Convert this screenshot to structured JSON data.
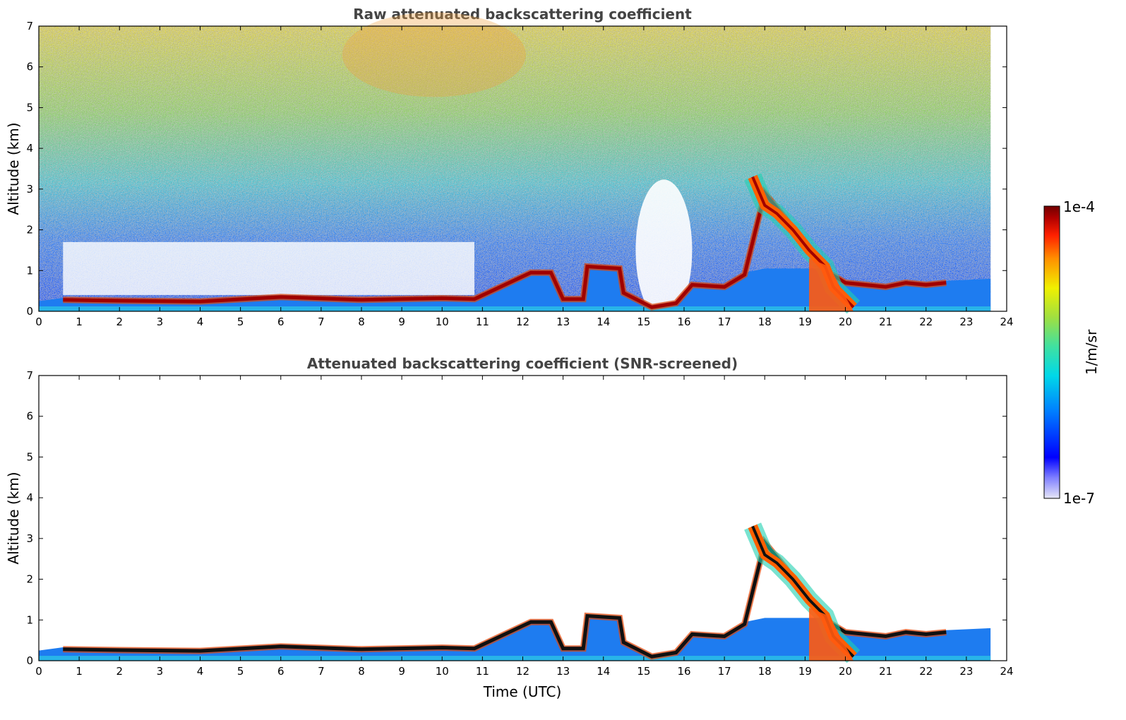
{
  "chart_data": [
    {
      "type": "heatmap",
      "title": "Raw attenuated backscattering coefficient",
      "xlabel": "",
      "ylabel": "Altitude (km)",
      "xlim": [
        0,
        24
      ],
      "ylim": [
        0,
        7
      ],
      "xticks": [
        "0",
        "1",
        "2",
        "3",
        "4",
        "5",
        "6",
        "7",
        "8",
        "9",
        "10",
        "11",
        "12",
        "13",
        "14",
        "15",
        "16",
        "17",
        "18",
        "19",
        "20",
        "21",
        "22",
        "23",
        "24"
      ],
      "yticks": [
        "0",
        "1",
        "2",
        "3",
        "4",
        "5",
        "6",
        "7"
      ],
      "data_end_hour": 23.6,
      "features": {
        "boundary_layer_top_km": [
          [
            0.6,
            0.28
          ],
          [
            2,
            0.26
          ],
          [
            4,
            0.24
          ],
          [
            6,
            0.35
          ],
          [
            8,
            0.28
          ],
          [
            10,
            0.32
          ],
          [
            10.8,
            0.3
          ],
          [
            12.2,
            0.95
          ],
          [
            12.7,
            0.95
          ],
          [
            13,
            0.3
          ],
          [
            13.5,
            0.3
          ],
          [
            13.6,
            1.1
          ],
          [
            14.4,
            1.05
          ],
          [
            14.5,
            0.45
          ],
          [
            15.2,
            0.1
          ],
          [
            15.8,
            0.2
          ],
          [
            16.2,
            0.65
          ],
          [
            17,
            0.6
          ],
          [
            17.5,
            0.9
          ],
          [
            18,
            2.9
          ],
          [
            18.5,
            2.3
          ],
          [
            19,
            1.6
          ],
          [
            19.5,
            1.0
          ],
          [
            20,
            0.7
          ],
          [
            20.5,
            0.65
          ],
          [
            21,
            0.6
          ],
          [
            21.5,
            0.7
          ],
          [
            22,
            0.65
          ],
          [
            22.5,
            0.7
          ]
        ],
        "plume": [
          [
            17.7,
            3.3
          ],
          [
            18,
            2.6
          ],
          [
            18.3,
            2.4
          ],
          [
            18.7,
            2.0
          ],
          [
            19.1,
            1.5
          ],
          [
            19.5,
            1.1
          ],
          [
            19.7,
            0.6
          ],
          [
            20.2,
            0.1
          ]
        ]
      }
    },
    {
      "type": "heatmap",
      "title": "Attenuated backscattering coefficient (SNR-screened)",
      "xlabel": "Time (UTC)",
      "ylabel": "Altitude (km)",
      "xlim": [
        0,
        24
      ],
      "ylim": [
        0,
        7
      ],
      "xticks": [
        "0",
        "1",
        "2",
        "3",
        "4",
        "5",
        "6",
        "7",
        "8",
        "9",
        "10",
        "11",
        "12",
        "13",
        "14",
        "15",
        "16",
        "17",
        "18",
        "19",
        "20",
        "21",
        "22",
        "23",
        "24"
      ],
      "yticks": [
        "0",
        "1",
        "2",
        "3",
        "4",
        "5",
        "6",
        "7"
      ],
      "data_end_hour": 23.6
    }
  ],
  "colorbar": {
    "label": "1/m/sr",
    "max_label": "1e-4",
    "min_label": "1e-7",
    "scale": "log",
    "colors": [
      "#e6e6f7",
      "#8080ff",
      "#0000ff",
      "#0080ff",
      "#00d8e8",
      "#40e0a0",
      "#a0e040",
      "#f0f000",
      "#ff9000",
      "#ff2000",
      "#b00000",
      "#700000"
    ]
  }
}
